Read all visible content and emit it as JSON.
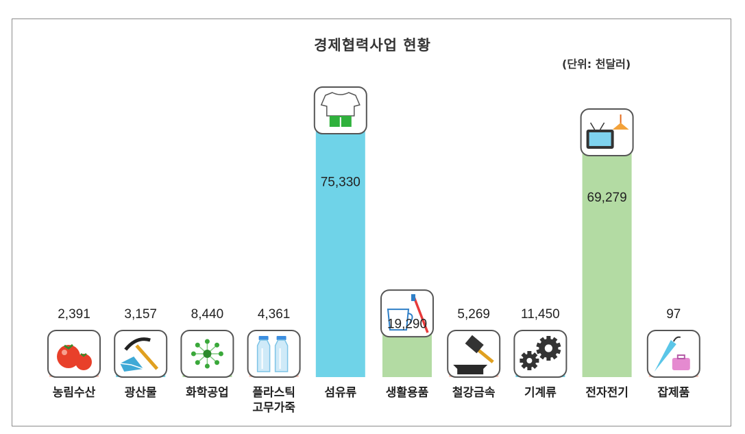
{
  "title": "경제협력사업 현황",
  "unit_label": "(단위: 천달러)",
  "chart_data": {
    "type": "bar",
    "title": "경제협력사업 현황",
    "ylabel": "",
    "unit": "천달러",
    "categories": [
      "농림수산",
      "광산물",
      "화학공업",
      "플라스틱 고무가죽",
      "섬유류",
      "생활용품",
      "철강금속",
      "기계류",
      "전자전기",
      "잡제품"
    ],
    "category_lines": [
      [
        "농림수산"
      ],
      [
        "광산물"
      ],
      [
        "화학공업"
      ],
      [
        "플라스틱",
        "고무가죽"
      ],
      [
        "섬유류"
      ],
      [
        "생활용품"
      ],
      [
        "철강금속"
      ],
      [
        "기계류"
      ],
      [
        "전자전기"
      ],
      [
        "잡제품"
      ]
    ],
    "values": [
      2391,
      3157,
      8440,
      4361,
      75330,
      19290,
      5269,
      11450,
      69279,
      97
    ],
    "value_labels": [
      "2,391",
      "3,157",
      "8,440",
      "4,361",
      "75,330",
      "19,290",
      "5,269",
      "11,450",
      "69,279",
      "97"
    ],
    "colors": [
      "#f9c3b5",
      "#6fd3e8",
      "#b3dba3",
      "#f9c3b5",
      "#6fd3e8",
      "#b3dba3",
      "#f9c3b5",
      "#6fd3e8",
      "#b3dba3",
      "#f9c3b5"
    ],
    "icons": [
      "tomato-icon",
      "pickaxe-icon",
      "molecule-icon",
      "bottles-icon",
      "shirt-icon",
      "cup-toothbrush-icon",
      "hammer-anvil-icon",
      "gears-icon",
      "tv-lamp-icon",
      "umbrella-bag-icon"
    ],
    "ylim": [
      0,
      75330
    ],
    "grid": false,
    "legend": "none"
  }
}
